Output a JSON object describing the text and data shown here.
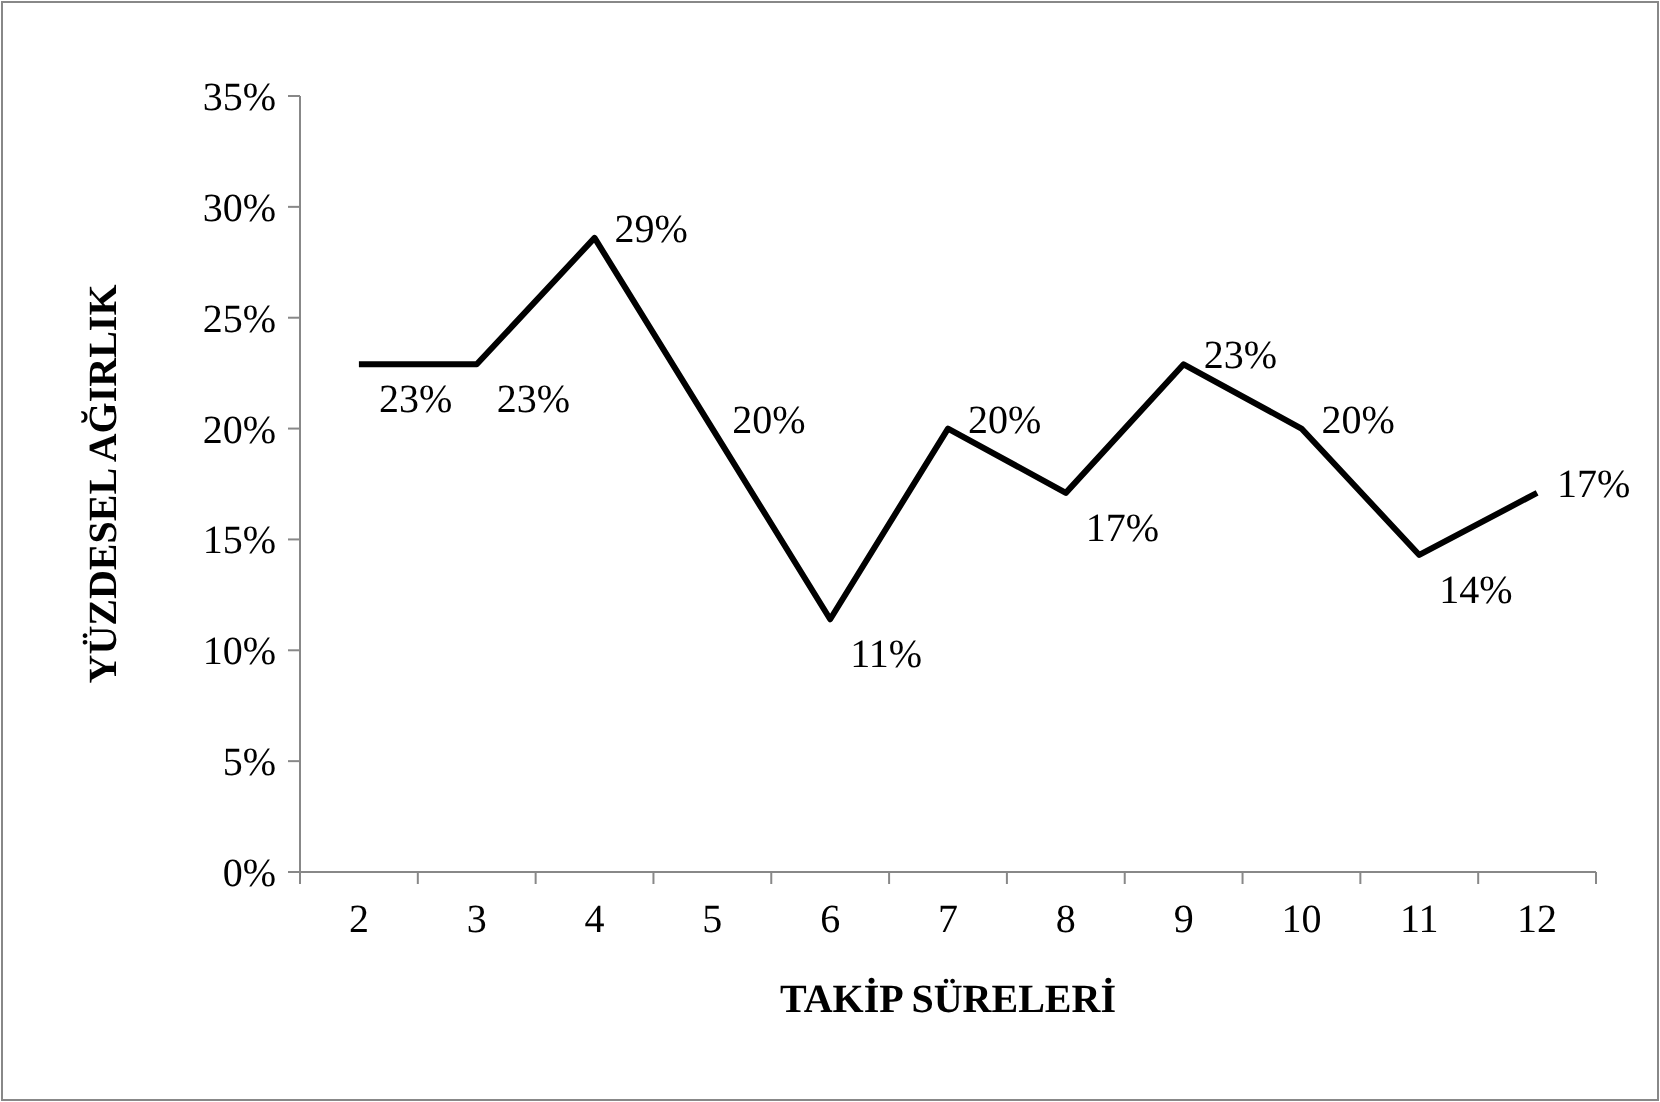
{
  "chart_data": {
    "type": "line",
    "xlabel": "TAKİP SÜRELERİ",
    "ylabel": "YÜZDESEL AĞIRLIK",
    "categories": [
      "2",
      "3",
      "4",
      "5",
      "6",
      "7",
      "8",
      "9",
      "10",
      "11",
      "12"
    ],
    "series": [
      {
        "color": "#000000",
        "values": [
          22.9,
          22.9,
          28.6,
          20.0,
          11.4,
          20.0,
          17.1,
          22.9,
          20.0,
          14.3,
          17.1
        ],
        "value_labels": [
          "23%",
          "23%",
          "29%",
          "20%",
          "11%",
          "20%",
          "17%",
          "23%",
          "20%",
          "14%",
          "17%"
        ]
      }
    ],
    "ylim": [
      0,
      35
    ],
    "yticks": [
      {
        "value": 0,
        "label": "0%"
      },
      {
        "value": 5,
        "label": "5%"
      },
      {
        "value": 10,
        "label": "10%"
      },
      {
        "value": 15,
        "label": "15%"
      },
      {
        "value": 20,
        "label": "20%"
      },
      {
        "value": 25,
        "label": "25%"
      },
      {
        "value": 30,
        "label": "30%"
      },
      {
        "value": 35,
        "label": "35%"
      }
    ],
    "grid": false,
    "marker": "none",
    "line_style": "solid"
  }
}
